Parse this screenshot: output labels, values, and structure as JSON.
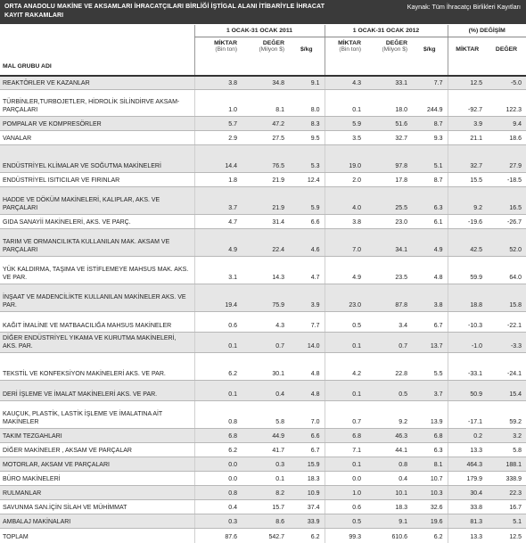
{
  "header": {
    "title": "ORTA ANADOLU MAKİNE VE AKSAMLARI İHRACATÇILARI BİRLİĞİ İŞTİGAL ALANI İTİBARİYLE İHRACAT KAYIT RAKAMLARI",
    "source": "Kaynak: Tüm İhracatçı Birlikleri Kayıtları"
  },
  "columns": {
    "group": "MAL GRUBU ADI",
    "period_2011": "1 OCAK-31 OCAK 2011",
    "period_2012": "1 OCAK-31 OCAK 2012",
    "change": "(%) DEĞİŞİM",
    "qty": "MİKTAR",
    "qty_unit": "(Bin ton)",
    "value": "DEĞER",
    "value_unit": "(Milyon $)",
    "per_kg": "$/kg",
    "chg_qty": "MİKTAR",
    "chg_value": "DEĞER"
  },
  "rows": [
    {
      "name": "REAKTÖRLER VE KAZANLAR",
      "q2011": "3.8",
      "v2011": "34.8",
      "k2011": "9.1",
      "q2012": "4.3",
      "v2012": "33.1",
      "k2012": "7.7",
      "cq": "12.5",
      "cv": "-5.0"
    },
    {
      "name": "TÜRBİNLER,TURBOJETLER, HİDROLİK SİLİNDİRVE AKSAM-PARÇALARI",
      "q2011": "1.0",
      "v2011": "8.1",
      "k2011": "8.0",
      "q2012": "0.1",
      "v2012": "18.0",
      "k2012": "244.9",
      "cq": "-92.7",
      "cv": "122.3"
    },
    {
      "name": "POMPALAR VE KOMPRESÖRLER",
      "q2011": "5.7",
      "v2011": "47.2",
      "k2011": "8.3",
      "q2012": "5.9",
      "v2012": "51.6",
      "k2012": "8.7",
      "cq": "3.9",
      "cv": "9.4"
    },
    {
      "name": "VANALAR",
      "q2011": "2.9",
      "v2011": "27.5",
      "k2011": "9.5",
      "q2012": "3.5",
      "v2012": "32.7",
      "k2012": "9.3",
      "cq": "21.1",
      "cv": "18.6"
    },
    {
      "name": "ENDÜSTRİYEL KLİMALAR VE SOĞUTMA MAKİNELERİ",
      "q2011": "14.4",
      "v2011": "76.5",
      "k2011": "5.3",
      "q2012": "19.0",
      "v2012": "97.8",
      "k2012": "5.1",
      "cq": "32.7",
      "cv": "27.9"
    },
    {
      "name": "ENDÜSTRİYEL ISITICILAR VE FIRINLAR",
      "q2011": "1.8",
      "v2011": "21.9",
      "k2011": "12.4",
      "q2012": "2.0",
      "v2012": "17.8",
      "k2012": "8.7",
      "cq": "15.5",
      "cv": "-18.5"
    },
    {
      "name": "HADDE VE DÖKÜM MAKİNELERİ, KALIPLAR, AKS. VE PARÇALARI",
      "q2011": "3.7",
      "v2011": "21.9",
      "k2011": "5.9",
      "q2012": "4.0",
      "v2012": "25.5",
      "k2012": "6.3",
      "cq": "9.2",
      "cv": "16.5"
    },
    {
      "name": "GIDA SANAYİİ MAKİNELERİ, AKS. VE PARÇ.",
      "q2011": "4.7",
      "v2011": "31.4",
      "k2011": "6.6",
      "q2012": "3.8",
      "v2012": "23.0",
      "k2012": "6.1",
      "cq": "-19.6",
      "cv": "-26.7"
    },
    {
      "name": "TARIM VE ORMANCILIKTA KULLANILAN MAK. AKSAM VE PARÇALARI",
      "q2011": "4.9",
      "v2011": "22.4",
      "k2011": "4.6",
      "q2012": "7.0",
      "v2012": "34.1",
      "k2012": "4.9",
      "cq": "42.5",
      "cv": "52.0"
    },
    {
      "name": "YÜK KALDIRMA, TAŞIMA VE İSTİFLEMEYE MAHSUS MAK. AKS. VE PAR.",
      "q2011": "3.1",
      "v2011": "14.3",
      "k2011": "4.7",
      "q2012": "4.9",
      "v2012": "23.5",
      "k2012": "4.8",
      "cq": "59.9",
      "cv": "64.0"
    },
    {
      "name": "İNŞAAT VE MADENCİLİKTE KULLANILAN MAKİNELER AKS. VE PAR.",
      "q2011": "19.4",
      "v2011": "75.9",
      "k2011": "3.9",
      "q2012": "23.0",
      "v2012": "87.8",
      "k2012": "3.8",
      "cq": "18.8",
      "cv": "15.8"
    },
    {
      "name": "KAĞIT İMALİNE VE MATBAACILIĞA MAHSUS MAKİNELER",
      "q2011": "0.6",
      "v2011": "4.3",
      "k2011": "7.7",
      "q2012": "0.5",
      "v2012": "3.4",
      "k2012": "6.7",
      "cq": "-10.3",
      "cv": "-22.1"
    },
    {
      "name": "DİĞER ENDÜSTRİYEL YIKAMA VE KURUTMA MAKİNELERİ, AKS. PAR.",
      "q2011": "0.1",
      "v2011": "0.7",
      "k2011": "14.0",
      "q2012": "0.1",
      "v2012": "0.7",
      "k2012": "13.7",
      "cq": "-1.0",
      "cv": "-3.3"
    },
    {
      "name": "TEKSTİL VE KONFEKSİYON MAKİNELERİ AKS. VE PAR.",
      "q2011": "6.2",
      "v2011": "30.1",
      "k2011": "4.8",
      "q2012": "4.2",
      "v2012": "22.8",
      "k2012": "5.5",
      "cq": "-33.1",
      "cv": "-24.1"
    },
    {
      "name": "DERİ İŞLEME VE İMALAT MAKİNELERİ AKS. VE PAR.",
      "q2011": "0.1",
      "v2011": "0.4",
      "k2011": "4.8",
      "q2012": "0.1",
      "v2012": "0.5",
      "k2012": "3.7",
      "cq": "50.9",
      "cv": "15.4"
    },
    {
      "name": "KAUÇUK, PLASTİK, LASTİK İŞLEME VE İMALATINA AİT MAKİNELER",
      "q2011": "0.8",
      "v2011": "5.8",
      "k2011": "7.0",
      "q2012": "0.7",
      "v2012": "9.2",
      "k2012": "13.9",
      "cq": "-17.1",
      "cv": "59.2"
    },
    {
      "name": "TAKIM TEZGAHLARI",
      "q2011": "6.8",
      "v2011": "44.9",
      "k2011": "6.6",
      "q2012": "6.8",
      "v2012": "46.3",
      "k2012": "6.8",
      "cq": "0.2",
      "cv": "3.2"
    },
    {
      "name": "DİĞER MAKİNELER , AKSAM VE PARÇALAR",
      "q2011": "6.2",
      "v2011": "41.7",
      "k2011": "6.7",
      "q2012": "7.1",
      "v2012": "44.1",
      "k2012": "6.3",
      "cq": "13.3",
      "cv": "5.8"
    },
    {
      "name": "MOTORLAR, AKSAM VE PARÇALARI",
      "q2011": "0.0",
      "v2011": "0.3",
      "k2011": "15.9",
      "q2012": "0.1",
      "v2012": "0.8",
      "k2012": "8.1",
      "cq": "464.3",
      "cv": "188.1"
    },
    {
      "name": "BÜRO MAKİNELERİ",
      "q2011": "0.0",
      "v2011": "0.1",
      "k2011": "18.3",
      "q2012": "0.0",
      "v2012": "0.4",
      "k2012": "10.7",
      "cq": "179.9",
      "cv": "338.9"
    },
    {
      "name": "RULMANLAR",
      "q2011": "0.8",
      "v2011": "8.2",
      "k2011": "10.9",
      "q2012": "1.0",
      "v2012": "10.1",
      "k2012": "10.3",
      "cq": "30.4",
      "cv": "22.3"
    },
    {
      "name": "SAVUNMA SAN.İÇİN SİLAH VE MÜHİMMAT",
      "q2011": "0.4",
      "v2011": "15.7",
      "k2011": "37.4",
      "q2012": "0.6",
      "v2012": "18.3",
      "k2012": "32.6",
      "cq": "33.8",
      "cv": "16.7"
    },
    {
      "name": "AMBALAJ MAKİNALARI",
      "q2011": "0.3",
      "v2011": "8.6",
      "k2011": "33.9",
      "q2012": "0.5",
      "v2012": "9.1",
      "k2012": "19.6",
      "cq": "81.3",
      "cv": "5.1"
    },
    {
      "name": "TOPLAM",
      "q2011": "87.6",
      "v2011": "542.7",
      "k2011": "6.2",
      "q2012": "99.3",
      "v2012": "610.6",
      "k2012": "6.2",
      "cq": "13.3",
      "cv": "12.5"
    }
  ]
}
